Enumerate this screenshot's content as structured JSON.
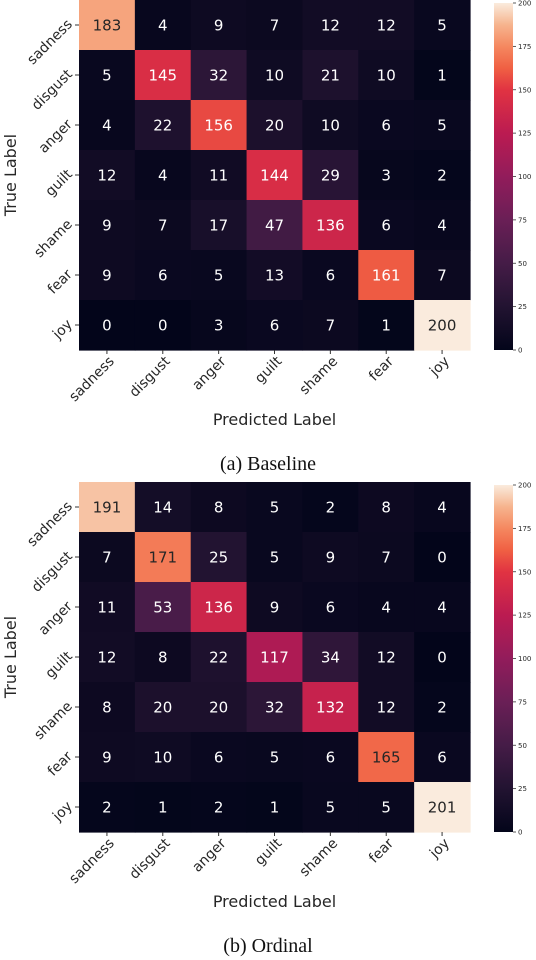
{
  "chart_data": [
    {
      "type": "heatmap",
      "caption": "(a) Baseline",
      "xlabel": "Predicted Label",
      "ylabel": "True Label",
      "x_categories": [
        "sadness",
        "disgust",
        "anger",
        "guilt",
        "shame",
        "fear",
        "joy"
      ],
      "y_categories": [
        "sadness",
        "disgust",
        "anger",
        "guilt",
        "shame",
        "fear",
        "joy"
      ],
      "values": [
        [
          183,
          4,
          9,
          7,
          12,
          12,
          5
        ],
        [
          5,
          145,
          32,
          10,
          21,
          10,
          1
        ],
        [
          4,
          22,
          156,
          20,
          10,
          6,
          5
        ],
        [
          12,
          4,
          11,
          144,
          29,
          3,
          2
        ],
        [
          9,
          7,
          17,
          47,
          136,
          6,
          4
        ],
        [
          9,
          6,
          5,
          13,
          6,
          161,
          7
        ],
        [
          0,
          0,
          3,
          6,
          7,
          1,
          200
        ]
      ],
      "colorbar_range": [
        0,
        200
      ],
      "colorbar_ticks": [
        "0",
        "25",
        "50",
        "75",
        "100",
        "125",
        "150",
        "175",
        "200"
      ],
      "colormap": "rocket"
    },
    {
      "type": "heatmap",
      "caption": "(b) Ordinal",
      "xlabel": "Predicted Label",
      "ylabel": "True Label",
      "x_categories": [
        "sadness",
        "disgust",
        "anger",
        "guilt",
        "shame",
        "fear",
        "joy"
      ],
      "y_categories": [
        "sadness",
        "disgust",
        "anger",
        "guilt",
        "shame",
        "fear",
        "joy"
      ],
      "values": [
        [
          191,
          14,
          8,
          5,
          2,
          8,
          4
        ],
        [
          7,
          171,
          25,
          5,
          9,
          7,
          0
        ],
        [
          11,
          53,
          136,
          9,
          6,
          4,
          4
        ],
        [
          12,
          8,
          22,
          117,
          34,
          12,
          0
        ],
        [
          8,
          20,
          20,
          32,
          132,
          12,
          2
        ],
        [
          9,
          10,
          6,
          5,
          6,
          165,
          6
        ],
        [
          2,
          1,
          2,
          1,
          5,
          5,
          201
        ]
      ],
      "colorbar_range": [
        0,
        200
      ],
      "colorbar_ticks": [
        "0",
        "25",
        "50",
        "75",
        "100",
        "125",
        "150",
        "175",
        "200"
      ],
      "colormap": "rocket"
    }
  ]
}
